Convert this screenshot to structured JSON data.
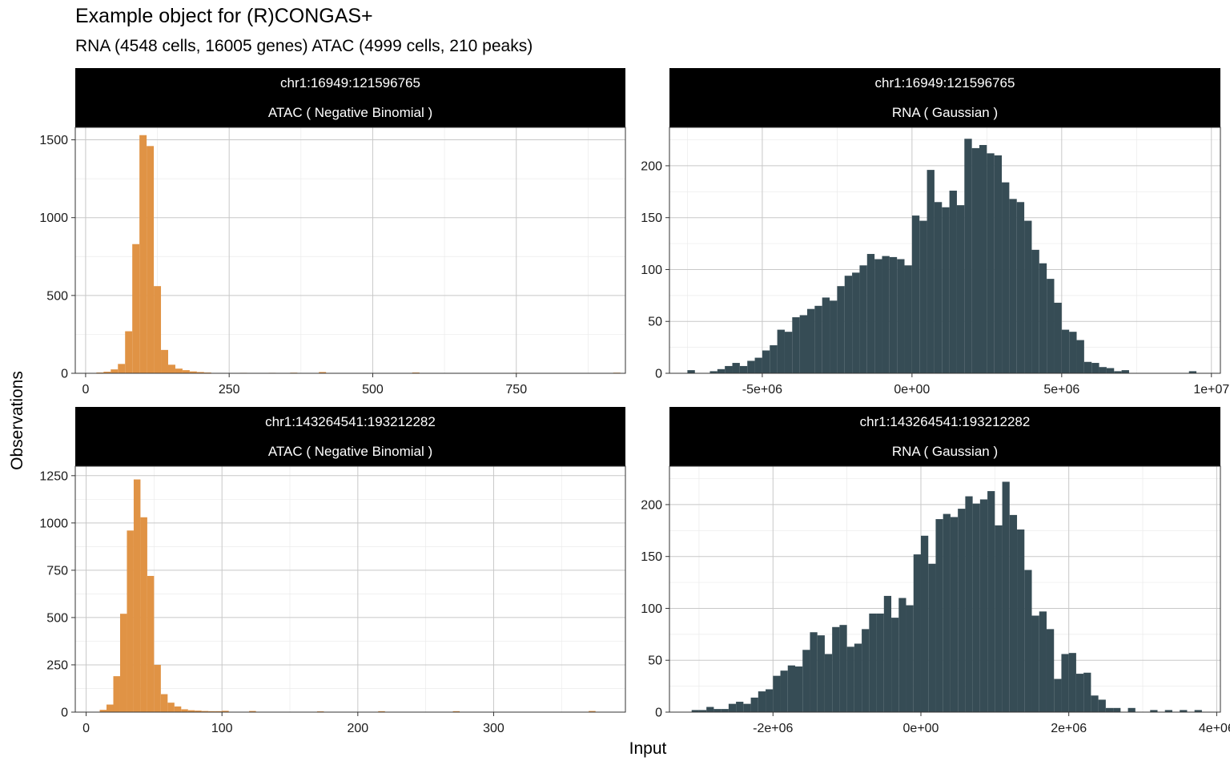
{
  "header": {
    "title": "Example object for (R)CONGAS+",
    "subtitle": "RNA (4548 cells, 16005 genes) ATAC (4999 cells, 210 peaks)"
  },
  "axes": {
    "xlabel": "Input",
    "ylabel": "Observations"
  },
  "colors": {
    "atac": "#E09345",
    "rna": "#364C55"
  },
  "chart_data": [
    {
      "type": "bar",
      "segment": "chr1:16949:121596765",
      "modality": "ATAC ( Negative Binomial )",
      "xlim": [
        -18,
        940
      ],
      "ylim": [
        0,
        1580
      ],
      "xticks": [
        0,
        250,
        500,
        750
      ],
      "xtick_labels": [
        "0",
        "250",
        "500",
        "750"
      ],
      "yticks": [
        0,
        500,
        1000,
        1500
      ],
      "ytick_labels": [
        "0",
        "500",
        "1000",
        "1500"
      ],
      "bin_width": 12.5,
      "x": [
        25,
        37.5,
        50,
        62.5,
        75,
        87.5,
        100,
        112.5,
        125,
        137.5,
        150,
        162.5,
        175,
        187.5,
        200,
        212.5,
        275,
        325,
        362.5,
        412.5,
        575,
        750,
        925
      ],
      "values": [
        5,
        10,
        25,
        60,
        270,
        830,
        1530,
        1460,
        560,
        150,
        55,
        30,
        20,
        12,
        8,
        5,
        3,
        3,
        4,
        8,
        5,
        3,
        4
      ]
    },
    {
      "type": "bar",
      "segment": "chr1:16949:121596765",
      "modality": "RNA ( Gaussian )",
      "xlim": [
        -8100000,
        10300000
      ],
      "ylim": [
        0,
        237
      ],
      "xticks": [
        -5000000,
        0,
        5000000,
        10000000
      ],
      "xtick_labels": [
        "-5e+06",
        "0e+00",
        "5e+06",
        "1e+07"
      ],
      "yticks": [
        0,
        50,
        100,
        150,
        200
      ],
      "ytick_labels": [
        "0",
        "50",
        "100",
        "150",
        "200"
      ],
      "bin_width": 250000,
      "x": [
        -7375000,
        -6625000,
        -6375000,
        -6125000,
        -5875000,
        -5625000,
        -5375000,
        -5125000,
        -4875000,
        -4625000,
        -4375000,
        -4125000,
        -3875000,
        -3625000,
        -3375000,
        -3125000,
        -2875000,
        -2625000,
        -2375000,
        -2125000,
        -1875000,
        -1625000,
        -1375000,
        -1125000,
        -875000,
        -625000,
        -375000,
        -125000,
        125000,
        375000,
        625000,
        875000,
        1125000,
        1375000,
        1625000,
        1875000,
        2125000,
        2375000,
        2625000,
        2875000,
        3125000,
        3375000,
        3625000,
        3875000,
        4125000,
        4375000,
        4625000,
        4875000,
        5125000,
        5375000,
        5625000,
        5875000,
        6125000,
        6375000,
        6625000,
        6875000,
        7125000,
        9375000
      ],
      "values": [
        3,
        2,
        4,
        7,
        10,
        7,
        12,
        15,
        22,
        27,
        42,
        40,
        54,
        56,
        62,
        65,
        73,
        70,
        84,
        94,
        97,
        104,
        115,
        110,
        113,
        112,
        110,
        104,
        152,
        147,
        196,
        165,
        160,
        176,
        162,
        226,
        217,
        220,
        212,
        210,
        184,
        168,
        165,
        147,
        119,
        106,
        91,
        68,
        42,
        40,
        32,
        11,
        10,
        6,
        5,
        2,
        3,
        2
      ]
    },
    {
      "type": "bar",
      "segment": "chr1:143264541:193212282",
      "modality": "ATAC ( Negative Binomial )",
      "xlim": [
        -8,
        397
      ],
      "ylim": [
        0,
        1300
      ],
      "xticks": [
        0,
        100,
        200,
        300
      ],
      "xtick_labels": [
        "0",
        "100",
        "200",
        "300"
      ],
      "yticks": [
        0,
        250,
        500,
        750,
        1000,
        1250
      ],
      "ytick_labels": [
        "0",
        "250",
        "500",
        "750",
        "1000",
        "1250"
      ],
      "bin_width": 5,
      "x": [
        12.5,
        17.5,
        22.5,
        27.5,
        32.5,
        37.5,
        42.5,
        47.5,
        52.5,
        57.5,
        62.5,
        67.5,
        72.5,
        77.5,
        82.5,
        87.5,
        92.5,
        97.5,
        102.5,
        122.5,
        172.5,
        217.5,
        272.5,
        372.5
      ],
      "values": [
        12,
        40,
        190,
        520,
        960,
        1230,
        1030,
        720,
        250,
        95,
        50,
        30,
        15,
        10,
        8,
        6,
        5,
        5,
        7,
        6,
        4,
        5,
        5,
        6
      ]
    },
    {
      "type": "bar",
      "segment": "chr1:143264541:193212282",
      "modality": "RNA ( Gaussian )",
      "xlim": [
        -3400000,
        4050000
      ],
      "ylim": [
        0,
        237
      ],
      "xticks": [
        -2000000,
        0,
        2000000,
        4000000
      ],
      "xtick_labels": [
        "-2e+06",
        "0e+00",
        "2e+06",
        "4e+06"
      ],
      "yticks": [
        0,
        50,
        100,
        150,
        200
      ],
      "ytick_labels": [
        "0",
        "50",
        "100",
        "150",
        "200"
      ],
      "bin_width": 100000,
      "x": [
        -3050000,
        -2950000,
        -2850000,
        -2750000,
        -2650000,
        -2550000,
        -2450000,
        -2350000,
        -2250000,
        -2150000,
        -2050000,
        -1950000,
        -1850000,
        -1750000,
        -1650000,
        -1550000,
        -1450000,
        -1350000,
        -1250000,
        -1150000,
        -1050000,
        -950000,
        -850000,
        -750000,
        -650000,
        -550000,
        -450000,
        -350000,
        -250000,
        -150000,
        -50000,
        50000,
        150000,
        250000,
        350000,
        450000,
        550000,
        650000,
        750000,
        850000,
        950000,
        1050000,
        1150000,
        1250000,
        1350000,
        1450000,
        1550000,
        1650000,
        1750000,
        1850000,
        1950000,
        2050000,
        2150000,
        2250000,
        2350000,
        2450000,
        2550000,
        2650000,
        2850000,
        3150000,
        3350000,
        3550000,
        3750000
      ],
      "values": [
        2,
        2,
        5,
        3,
        3,
        8,
        10,
        8,
        14,
        20,
        22,
        35,
        40,
        45,
        44,
        60,
        77,
        74,
        56,
        82,
        84,
        63,
        66,
        80,
        95,
        95,
        112,
        91,
        110,
        103,
        152,
        170,
        143,
        186,
        191,
        188,
        196,
        208,
        201,
        205,
        213,
        180,
        222,
        190,
        176,
        137,
        93,
        97,
        80,
        32,
        56,
        57,
        37,
        38,
        16,
        12,
        4,
        4,
        4,
        2,
        2,
        2,
        2
      ]
    }
  ]
}
